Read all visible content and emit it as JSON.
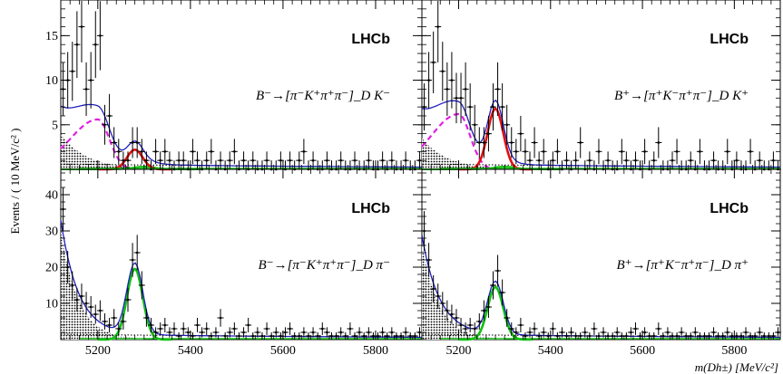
{
  "figure": {
    "ylabel": "Events / ( 10 MeV/c² )",
    "xlabel": "m(Dh±) [MeV/c²]",
    "xlim": [
      5120,
      5900
    ],
    "xticks": [
      5200,
      5400,
      5600,
      5800
    ],
    "colors": {
      "total": "#1f1fbf",
      "signal": "#e01010",
      "misid": "#10c010",
      "partreco": "#e020e0",
      "comb": "#000000",
      "data": "#000000",
      "hatch": "#000000"
    }
  },
  "chart_data": [
    {
      "type": "scatter",
      "panel": "top-left",
      "brand": "LHCb",
      "decay_label": "B⁻→[π⁻K⁺π⁺π⁻]_D K⁻",
      "ylim": [
        0,
        19
      ],
      "yticks": [
        5,
        10,
        15
      ],
      "signal_yield": 2.2,
      "misid_yield": 0.3,
      "partreco_peak": 5.6,
      "comb_level": 0.6,
      "lowmass_hatch_peak": 4.0,
      "x": [
        5125,
        5135,
        5145,
        5155,
        5165,
        5175,
        5185,
        5195,
        5205,
        5215,
        5225,
        5235,
        5245,
        5255,
        5265,
        5275,
        5285,
        5295,
        5305,
        5315,
        5325,
        5335,
        5345,
        5355,
        5365,
        5375,
        5385,
        5395,
        5405,
        5415,
        5425,
        5435,
        5445,
        5455,
        5465,
        5475,
        5485,
        5495,
        5505,
        5515,
        5525,
        5535,
        5545,
        5555,
        5565,
        5575,
        5585,
        5595,
        5605,
        5615,
        5625,
        5635,
        5645,
        5655,
        5665,
        5675,
        5685,
        5695,
        5705,
        5715,
        5725,
        5735,
        5745,
        5755,
        5765,
        5775,
        5785,
        5795,
        5805,
        5815,
        5825,
        5835,
        5845,
        5855,
        5865,
        5875,
        5885,
        5895
      ],
      "y": [
        9,
        10,
        11,
        14,
        16,
        9,
        10,
        14,
        15,
        5,
        6,
        3,
        2,
        1,
        1,
        3,
        3,
        2,
        1,
        0,
        2,
        1,
        2,
        1,
        0,
        1,
        1,
        0,
        2,
        1,
        0,
        1,
        2,
        0,
        1,
        0,
        1,
        2,
        0,
        1,
        0,
        1,
        0,
        0,
        1,
        0,
        0,
        1,
        0,
        1,
        0,
        1,
        2,
        0,
        1,
        0,
        0,
        1,
        0,
        0,
        1,
        0,
        0,
        1,
        0,
        0,
        1,
        0,
        0,
        1,
        0,
        1,
        0,
        0,
        1,
        0,
        0,
        1
      ]
    },
    {
      "type": "scatter",
      "panel": "top-right",
      "brand": "LHCb",
      "decay_label": "B⁺→[π⁺K⁻π⁺π⁻]_D K⁺",
      "ylim": [
        0,
        19
      ],
      "yticks": [
        5,
        10,
        15
      ],
      "signal_yield": 6.8,
      "misid_yield": 0.3,
      "partreco_peak": 6.2,
      "comb_level": 0.6,
      "lowmass_hatch_peak": 3.5,
      "x": [
        5125,
        5135,
        5145,
        5155,
        5165,
        5175,
        5185,
        5195,
        5205,
        5215,
        5225,
        5235,
        5245,
        5255,
        5265,
        5275,
        5285,
        5295,
        5305,
        5315,
        5325,
        5335,
        5345,
        5355,
        5365,
        5375,
        5385,
        5395,
        5405,
        5415,
        5425,
        5435,
        5445,
        5455,
        5465,
        5475,
        5485,
        5495,
        5505,
        5515,
        5525,
        5535,
        5545,
        5555,
        5565,
        5575,
        5585,
        5595,
        5605,
        5615,
        5625,
        5635,
        5645,
        5655,
        5665,
        5675,
        5685,
        5695,
        5705,
        5715,
        5725,
        5735,
        5745,
        5755,
        5765,
        5775,
        5785,
        5795,
        5805,
        5815,
        5825,
        5835,
        5845,
        5855,
        5865,
        5875,
        5885,
        5895
      ],
      "y": [
        7,
        10,
        12,
        16,
        11,
        9,
        10,
        8,
        8,
        9,
        7,
        5,
        3,
        3,
        4,
        7,
        9,
        7,
        5,
        3,
        2,
        4,
        2,
        1,
        3,
        1,
        2,
        0,
        1,
        2,
        0,
        1,
        0,
        1,
        3,
        0,
        1,
        0,
        2,
        0,
        1,
        0,
        0,
        2,
        1,
        0,
        1,
        0,
        2,
        0,
        1,
        3,
        0,
        0,
        1,
        2,
        0,
        0,
        1,
        0,
        2,
        0,
        0,
        1,
        0,
        0,
        2,
        0,
        1,
        0,
        0,
        2,
        0,
        1,
        0,
        0,
        1,
        0
      ]
    },
    {
      "type": "scatter",
      "panel": "bottom-left",
      "brand": "LHCb",
      "decay_label": "B⁻→[π⁻K⁺π⁺π⁻]_D π⁻",
      "ylim": [
        0,
        47
      ],
      "yticks": [
        10,
        20,
        30,
        40
      ],
      "signal_yield": 19.5,
      "misid_yield": 0,
      "partreco_peak": 0,
      "comb_level": 1.5,
      "lowmass_hatch_peak": 30,
      "x": [
        5125,
        5135,
        5145,
        5155,
        5165,
        5175,
        5185,
        5195,
        5205,
        5215,
        5225,
        5235,
        5245,
        5255,
        5265,
        5275,
        5285,
        5295,
        5305,
        5315,
        5325,
        5335,
        5345,
        5355,
        5365,
        5375,
        5385,
        5395,
        5405,
        5415,
        5425,
        5435,
        5445,
        5455,
        5465,
        5475,
        5485,
        5495,
        5505,
        5515,
        5525,
        5535,
        5545,
        5555,
        5565,
        5575,
        5585,
        5595,
        5605,
        5615,
        5625,
        5635,
        5645,
        5655,
        5665,
        5675,
        5685,
        5695,
        5705,
        5715,
        5725,
        5735,
        5745,
        5755,
        5765,
        5775,
        5785,
        5795,
        5805,
        5815,
        5825,
        5835,
        5845,
        5855,
        5865,
        5875,
        5885,
        5895
      ],
      "y": [
        36,
        20,
        15,
        11,
        12,
        10,
        9,
        7,
        8,
        5,
        4,
        6,
        3,
        5,
        11,
        22,
        24,
        15,
        6,
        4,
        2,
        3,
        4,
        2,
        3,
        1,
        3,
        2,
        1,
        4,
        2,
        3,
        1,
        2,
        6,
        1,
        2,
        3,
        1,
        2,
        4,
        1,
        2,
        1,
        3,
        1,
        2,
        1,
        2,
        3,
        1,
        1,
        2,
        1,
        2,
        1,
        3,
        2,
        1,
        1,
        2,
        1,
        3,
        1,
        2,
        1,
        2,
        1,
        1,
        2,
        1,
        2,
        1,
        1,
        2,
        1,
        1,
        2
      ]
    },
    {
      "type": "scatter",
      "panel": "bottom-right",
      "brand": "LHCb",
      "decay_label": "B⁺→[π⁺K⁻π⁺π⁻]_D π⁺",
      "ylim": [
        0,
        47
      ],
      "yticks": [
        10,
        20,
        30,
        40
      ],
      "signal_yield": 14.5,
      "misid_yield": 0,
      "partreco_peak": 0,
      "comb_level": 1.5,
      "lowmass_hatch_peak": 26,
      "x": [
        5125,
        5135,
        5145,
        5155,
        5165,
        5175,
        5185,
        5195,
        5205,
        5215,
        5225,
        5235,
        5245,
        5255,
        5265,
        5275,
        5285,
        5295,
        5305,
        5315,
        5325,
        5335,
        5345,
        5355,
        5365,
        5375,
        5385,
        5395,
        5405,
        5415,
        5425,
        5435,
        5445,
        5455,
        5465,
        5475,
        5485,
        5495,
        5505,
        5515,
        5525,
        5535,
        5545,
        5555,
        5565,
        5575,
        5585,
        5595,
        5605,
        5615,
        5625,
        5635,
        5645,
        5655,
        5665,
        5675,
        5685,
        5695,
        5705,
        5715,
        5725,
        5735,
        5745,
        5755,
        5765,
        5775,
        5785,
        5795,
        5805,
        5815,
        5825,
        5835,
        5845,
        5855,
        5865,
        5875,
        5885,
        5895
      ],
      "y": [
        30,
        22,
        14,
        12,
        10,
        8,
        7,
        6,
        4,
        3,
        4,
        3,
        5,
        8,
        9,
        15,
        19,
        13,
        6,
        3,
        2,
        4,
        1,
        2,
        3,
        1,
        2,
        1,
        3,
        1,
        2,
        1,
        2,
        1,
        1,
        2,
        1,
        3,
        1,
        2,
        1,
        1,
        2,
        1,
        1,
        2,
        3,
        1,
        2,
        1,
        1,
        3,
        1,
        2,
        1,
        1,
        2,
        1,
        1,
        2,
        1,
        1,
        1,
        2,
        1,
        1,
        2,
        1,
        1,
        1,
        2,
        1,
        1,
        2,
        1,
        1,
        1,
        2
      ]
    }
  ]
}
